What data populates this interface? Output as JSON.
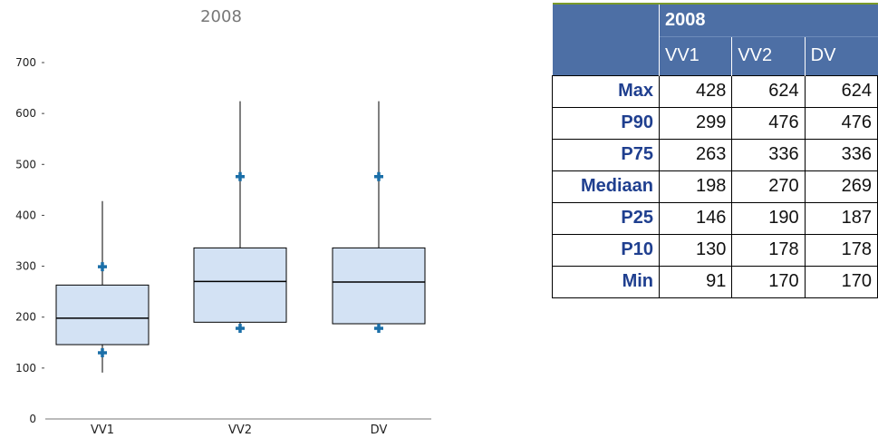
{
  "chart_data": {
    "type": "box",
    "title": "2008",
    "categories": [
      "VV1",
      "VV2",
      "DV"
    ],
    "ylim": [
      0,
      700
    ],
    "yticks": [
      0,
      100,
      200,
      300,
      400,
      500,
      600,
      700
    ],
    "grid": false,
    "series": [
      {
        "max": 428,
        "p90": 299,
        "p75": 263,
        "median": 198,
        "p25": 146,
        "p10": 130,
        "min": 91
      },
      {
        "max": 624,
        "p90": 476,
        "p75": 336,
        "median": 270,
        "p25": 190,
        "p10": 178,
        "min": 170
      },
      {
        "max": 624,
        "p90": 476,
        "p75": 336,
        "median": 269,
        "p25": 187,
        "p10": 178,
        "min": 170
      }
    ],
    "colors": {
      "box_fill": "#d3e2f4",
      "marker": "#1b6fa8",
      "line": "#000000"
    }
  },
  "table": {
    "year": "2008",
    "columns": [
      "VV1",
      "VV2",
      "DV"
    ],
    "rows": [
      {
        "label": "Max",
        "values": [
          "428",
          "624",
          "624"
        ]
      },
      {
        "label": "P90",
        "values": [
          "299",
          "476",
          "476"
        ]
      },
      {
        "label": "P75",
        "values": [
          "263",
          "336",
          "336"
        ]
      },
      {
        "label": "Mediaan",
        "values": [
          "198",
          "270",
          "269"
        ]
      },
      {
        "label": "P25",
        "values": [
          "146",
          "190",
          "187"
        ]
      },
      {
        "label": "P10",
        "values": [
          "130",
          "178",
          "178"
        ]
      },
      {
        "label": "Min",
        "values": [
          "91",
          "170",
          "170"
        ]
      }
    ],
    "colors": {
      "header_bg": "#4d6fa5",
      "row_label": "#1f3f8f"
    }
  }
}
